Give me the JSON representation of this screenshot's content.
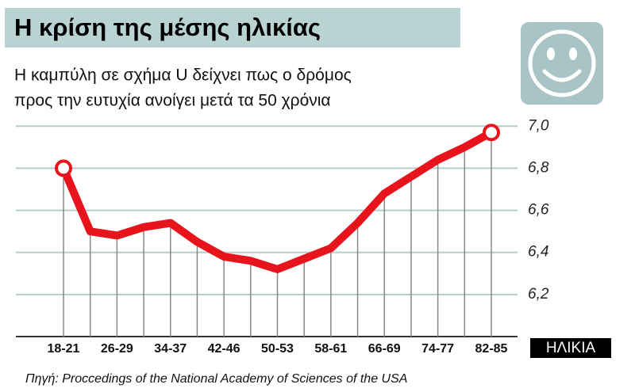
{
  "chart_data": {
    "type": "line",
    "title": "Η κρίση της μέσης ηλικίας",
    "subtitle": [
      "Η καμπύλη σε σχήμα U δείχνει πως ο δρόμος",
      "προς την ευτυχία ανοίγει μετά τα 50 χρόνια"
    ],
    "x_label": "ΗΛΙΚΙΑ",
    "source": "Πηγή: Proccedings of the National Academy of Sciences of the USA",
    "categories": [
      "18-21",
      null,
      "26-29",
      null,
      "34-37",
      null,
      "42-46",
      null,
      "50-53",
      null,
      "58-61",
      null,
      "66-69",
      null,
      "74-77",
      null,
      "82-85"
    ],
    "series": [
      {
        "color": "#e8141c",
        "values": [
          6.8,
          6.5,
          6.48,
          6.52,
          6.54,
          6.45,
          6.38,
          6.36,
          6.32,
          6.37,
          6.42,
          6.54,
          6.68,
          6.76,
          6.84,
          6.9,
          6.97
        ]
      }
    ],
    "highlighted_points": [
      0,
      16
    ],
    "ylim": [
      6.0,
      7.05
    ],
    "yticks": [
      {
        "value": 6.2,
        "label": "6,2"
      },
      {
        "value": 6.4,
        "label": "6,4"
      },
      {
        "value": 6.6,
        "label": "6,6"
      },
      {
        "value": 6.8,
        "label": "6,8"
      },
      {
        "value": 7.0,
        "label": "7,0"
      }
    ],
    "grid": true
  }
}
